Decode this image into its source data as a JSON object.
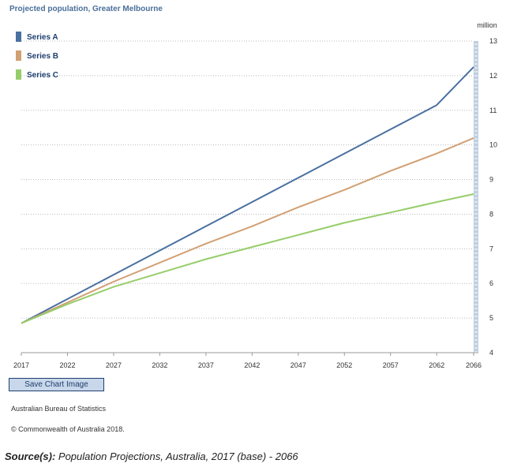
{
  "chart_data": {
    "type": "line",
    "title": "Projected population, Greater Melbourne",
    "ylabel": "million",
    "xlabel": "",
    "ylim": [
      4,
      13
    ],
    "xlim": [
      2017,
      2066
    ],
    "x_ticks": [
      2017,
      2022,
      2027,
      2032,
      2037,
      2042,
      2047,
      2052,
      2057,
      2062,
      2066
    ],
    "y_ticks": [
      4,
      5,
      6,
      7,
      8,
      9,
      10,
      11,
      12,
      13
    ],
    "grid": true,
    "legend_position": "top-left",
    "series": [
      {
        "name": "Series A",
        "color": "#4a70a0",
        "points": [
          [
            2017,
            4.85
          ],
          [
            2022,
            5.55
          ],
          [
            2027,
            6.25
          ],
          [
            2032,
            6.95
          ],
          [
            2037,
            7.65
          ],
          [
            2042,
            8.35
          ],
          [
            2047,
            9.05
          ],
          [
            2052,
            9.75
          ],
          [
            2057,
            10.45
          ],
          [
            2062,
            11.15
          ],
          [
            2066,
            12.25
          ]
        ]
      },
      {
        "name": "Series B",
        "color": "#d2a074",
        "points": [
          [
            2017,
            4.85
          ],
          [
            2022,
            5.45
          ],
          [
            2027,
            6.05
          ],
          [
            2032,
            6.6
          ],
          [
            2037,
            7.15
          ],
          [
            2042,
            7.65
          ],
          [
            2047,
            8.2
          ],
          [
            2052,
            8.7
          ],
          [
            2057,
            9.25
          ],
          [
            2062,
            9.75
          ],
          [
            2066,
            10.2
          ]
        ]
      },
      {
        "name": "Series C",
        "color": "#96cd6a",
        "points": [
          [
            2017,
            4.85
          ],
          [
            2022,
            5.4
          ],
          [
            2027,
            5.9
          ],
          [
            2032,
            6.3
          ],
          [
            2037,
            6.7
          ],
          [
            2042,
            7.05
          ],
          [
            2047,
            7.4
          ],
          [
            2052,
            7.75
          ],
          [
            2057,
            8.05
          ],
          [
            2062,
            8.35
          ],
          [
            2066,
            8.58
          ]
        ]
      }
    ]
  },
  "controls": {
    "save_label": "Save Chart Image"
  },
  "footer": {
    "organisation": "Australian Bureau of Statistics",
    "copyright": "© Commonwealth of Australia 2018.",
    "source_label": "Source(s):",
    "source_text": " Population Projections, Australia, 2017 (base) - 2066"
  }
}
